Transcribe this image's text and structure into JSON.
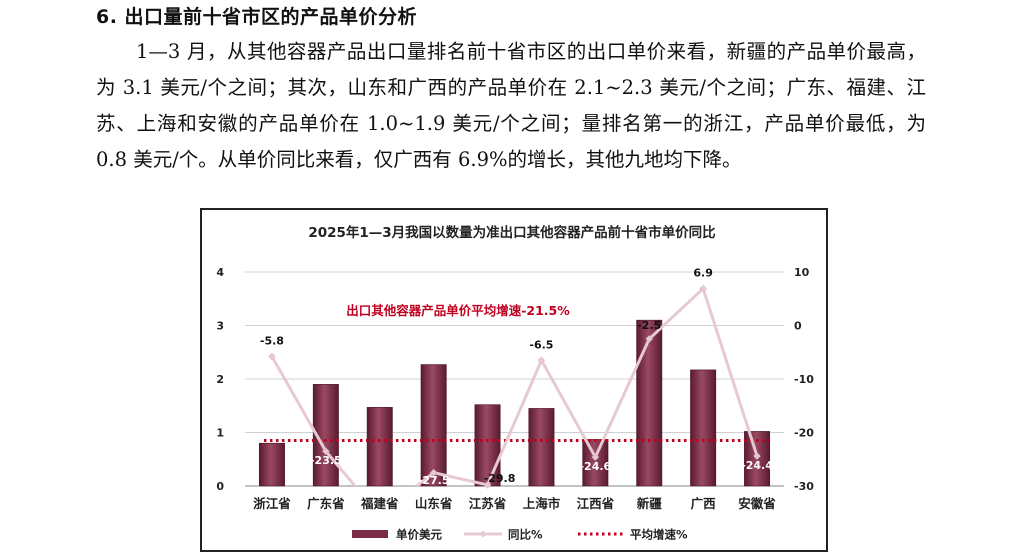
{
  "section": {
    "heading": "6. 出口量前十省市区的产品单价分析",
    "paragraph": "1—3 月，从其他容器产品出口量排名前十省市区的出口单价来看，新疆的产品单价最高，为 3.1 美元/个之间；其次，山东和广西的产品单价在 2.1~2.3 美元/个之间；广东、福建、江苏、上海和安徽的产品单价在 1.0~1.9 美元/个之间；量排名第一的浙江，产品单价最低，为 0.8 美元/个。从单价同比来看，仅广西有 6.9%的增长，其他九地均下降。"
  },
  "chart_data": {
    "type": "bar",
    "title": "2025年1—3月我国以数量为准出口其他容器产品前十省市单价同比",
    "categories": [
      "浙江省",
      "广东省",
      "福建省",
      "山东省",
      "江苏省",
      "上海市",
      "江西省",
      "新疆",
      "广西",
      "安徽省"
    ],
    "series": [
      {
        "name": "单价美元",
        "kind": "bar",
        "axis": "left",
        "values": [
          0.8,
          1.9,
          1.47,
          2.27,
          1.52,
          1.45,
          0.87,
          3.1,
          2.17,
          1.02
        ]
      },
      {
        "name": "同比%",
        "kind": "line",
        "axis": "right",
        "values": [
          -5.8,
          -23.5,
          -35.5,
          -27.5,
          -29.8,
          -6.5,
          -24.6,
          -2.5,
          6.9,
          -24.4
        ],
        "data_labels": [
          "-5.8",
          "-23.5",
          "",
          "-27.5",
          "-29.8",
          "-6.5",
          "-24.6",
          "-2.5",
          "6.9",
          "-24.4"
        ]
      },
      {
        "name": "平均增速%",
        "kind": "dotted-line",
        "axis": "right",
        "value": -21.5
      }
    ],
    "annotation": "出口其他容器产品单价平均增速-21.5%",
    "y_left": {
      "min": 0,
      "max": 4,
      "ticks": [
        0,
        1,
        2,
        3,
        4
      ]
    },
    "y_right": {
      "min": -30,
      "max": 10,
      "ticks": [
        10,
        0,
        -10,
        -20,
        -30
      ]
    },
    "grid": true,
    "legend_position": "bottom",
    "colors": {
      "bar": "#7b2c45",
      "bar_light": "#a8566f",
      "line": "#e7c9d2",
      "avg": "#c0001f",
      "annotation": "#c0001f",
      "grid": "#d0d0d0"
    }
  }
}
